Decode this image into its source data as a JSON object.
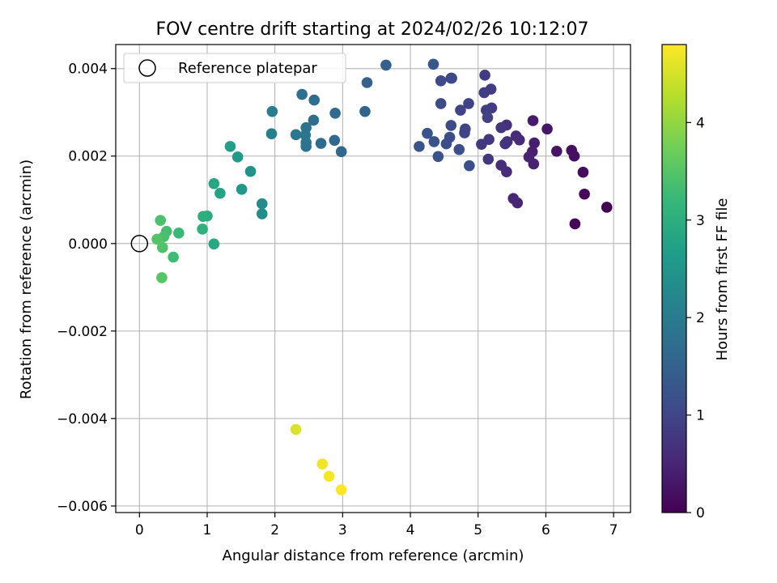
{
  "chart_data": {
    "type": "scatter",
    "title": "FOV centre drift starting at 2024/02/26 10:12:07",
    "xlabel": "Angular distance from reference (arcmin)",
    "ylabel": "Rotation from reference (arcmin)",
    "xlim": [
      -0.35,
      7.25
    ],
    "ylim": [
      -0.00615,
      0.00455
    ],
    "xticks": [
      0,
      1,
      2,
      3,
      4,
      5,
      6,
      7
    ],
    "xtick_labels": [
      "0",
      "1",
      "2",
      "3",
      "4",
      "5",
      "6",
      "7"
    ],
    "yticks": [
      -0.006,
      -0.004,
      -0.002,
      0.0,
      0.002,
      0.004
    ],
    "ytick_labels": [
      "−0.006",
      "−0.004",
      "−0.002",
      "0.000",
      "0.002",
      "0.004"
    ],
    "grid": true,
    "legend": {
      "position": "top-left",
      "entries": [
        "Reference platepar"
      ]
    },
    "reference_point": {
      "x": 0,
      "y": 0,
      "label": "Reference platepar"
    },
    "colorbar": {
      "label": "Hours from first FF file",
      "colormap": "viridis",
      "range": [
        0,
        4.8
      ],
      "ticks": [
        0,
        1,
        2,
        3,
        4
      ],
      "tick_labels": [
        "0",
        "1",
        "2",
        "3",
        "4"
      ]
    },
    "series": [
      {
        "points": [
          [
            6.9,
            0.00083,
            0.02
          ],
          [
            6.43,
            0.00045,
            0.08
          ],
          [
            6.57,
            0.00113,
            0.1
          ],
          [
            6.55,
            0.00163,
            0.15
          ],
          [
            6.42,
            0.002,
            0.18
          ],
          [
            6.38,
            0.00213,
            0.2
          ],
          [
            6.16,
            0.00211,
            0.25
          ],
          [
            6.02,
            0.00262,
            0.3
          ],
          [
            5.81,
            0.00281,
            0.35
          ],
          [
            5.83,
            0.0023,
            0.4
          ],
          [
            5.8,
            0.0021,
            0.42
          ],
          [
            5.82,
            0.00182,
            0.45
          ],
          [
            5.75,
            0.00198,
            0.48
          ],
          [
            5.58,
            0.00093,
            0.5
          ],
          [
            5.52,
            0.00103,
            0.52
          ],
          [
            5.61,
            0.00237,
            0.55
          ],
          [
            5.56,
            0.00246,
            0.58
          ],
          [
            5.42,
            0.00164,
            0.6
          ],
          [
            5.34,
            0.00179,
            0.62
          ],
          [
            5.42,
            0.00271,
            0.65
          ],
          [
            5.43,
            0.00233,
            0.67
          ],
          [
            5.4,
            0.00228,
            0.7
          ],
          [
            5.34,
            0.00265,
            0.72
          ],
          [
            5.15,
            0.00193,
            0.75
          ],
          [
            5.16,
            0.00238,
            0.77
          ],
          [
            5.05,
            0.00227,
            0.8
          ],
          [
            5.2,
            0.0031,
            0.82
          ],
          [
            5.19,
            0.00353,
            0.84
          ],
          [
            5.1,
            0.00385,
            0.86
          ],
          [
            5.09,
            0.00345,
            0.88
          ],
          [
            5.12,
            0.00305,
            0.9
          ],
          [
            5.14,
            0.00288,
            0.92
          ],
          [
            4.86,
            0.0032,
            0.94
          ],
          [
            4.74,
            0.00305,
            0.96
          ],
          [
            4.81,
            0.00262,
            0.98
          ],
          [
            4.8,
            0.00253,
            1.0
          ],
          [
            4.6,
            0.00378,
            1.02
          ],
          [
            4.61,
            0.00378,
            1.04
          ],
          [
            4.45,
            0.00372,
            1.06
          ],
          [
            4.45,
            0.0032,
            1.08
          ],
          [
            4.6,
            0.0027,
            1.1
          ],
          [
            4.58,
            0.00243,
            1.12
          ],
          [
            4.53,
            0.00228,
            1.14
          ],
          [
            4.72,
            0.00215,
            1.16
          ],
          [
            4.87,
            0.00178,
            1.18
          ],
          [
            4.41,
            0.00199,
            1.2
          ],
          [
            4.35,
            0.00233,
            1.22
          ],
          [
            4.25,
            0.00252,
            1.24
          ],
          [
            4.13,
            0.00222,
            1.26
          ],
          [
            4.34,
            0.0041,
            1.3
          ],
          [
            3.64,
            0.00408,
            1.45
          ],
          [
            3.36,
            0.00368,
            1.5
          ],
          [
            3.33,
            0.00302,
            1.55
          ],
          [
            2.98,
            0.0021,
            1.6
          ],
          [
            2.88,
            0.00236,
            1.62
          ],
          [
            2.89,
            0.00298,
            1.65
          ],
          [
            2.68,
            0.00229,
            1.7
          ],
          [
            2.57,
            0.00282,
            1.72
          ],
          [
            2.58,
            0.00328,
            1.75
          ],
          [
            2.4,
            0.00341,
            1.78
          ],
          [
            2.46,
            0.00265,
            1.8
          ],
          [
            2.46,
            0.00231,
            1.82
          ],
          [
            2.46,
            0.00222,
            1.84
          ],
          [
            2.45,
            0.00248,
            1.86
          ],
          [
            2.31,
            0.00249,
            1.9
          ],
          [
            1.96,
            0.00302,
            2.05
          ],
          [
            1.95,
            0.00251,
            2.1
          ],
          [
            1.81,
            0.00091,
            2.3
          ],
          [
            1.81,
            0.00068,
            2.35
          ],
          [
            1.64,
            0.00165,
            2.45
          ],
          [
            1.51,
            0.00124,
            2.55
          ],
          [
            1.45,
            0.00198,
            2.6
          ],
          [
            1.34,
            0.00222,
            2.7
          ],
          [
            1.19,
            0.00115,
            2.8
          ],
          [
            1.1,
            0.00137,
            2.85
          ],
          [
            1.1,
            -1e-05,
            2.9
          ],
          [
            1.0,
            0.00063,
            2.95
          ],
          [
            0.94,
            0.00062,
            3.0
          ],
          [
            0.93,
            0.00033,
            3.05
          ],
          [
            0.58,
            0.00024,
            3.25
          ],
          [
            0.5,
            -0.00031,
            3.3
          ],
          [
            0.4,
            0.00028,
            3.35
          ],
          [
            0.36,
            0.00016,
            3.4
          ],
          [
            0.31,
            0.00053,
            3.42
          ],
          [
            0.34,
            -9e-05,
            3.45
          ],
          [
            0.26,
            0.0001,
            3.48
          ],
          [
            0.33,
            -0.00078,
            3.52
          ],
          [
            2.31,
            -0.00425,
            4.55
          ],
          [
            2.7,
            -0.00504,
            4.7
          ],
          [
            2.8,
            -0.00532,
            4.75
          ],
          [
            2.98,
            -0.00563,
            4.8
          ]
        ]
      }
    ]
  }
}
